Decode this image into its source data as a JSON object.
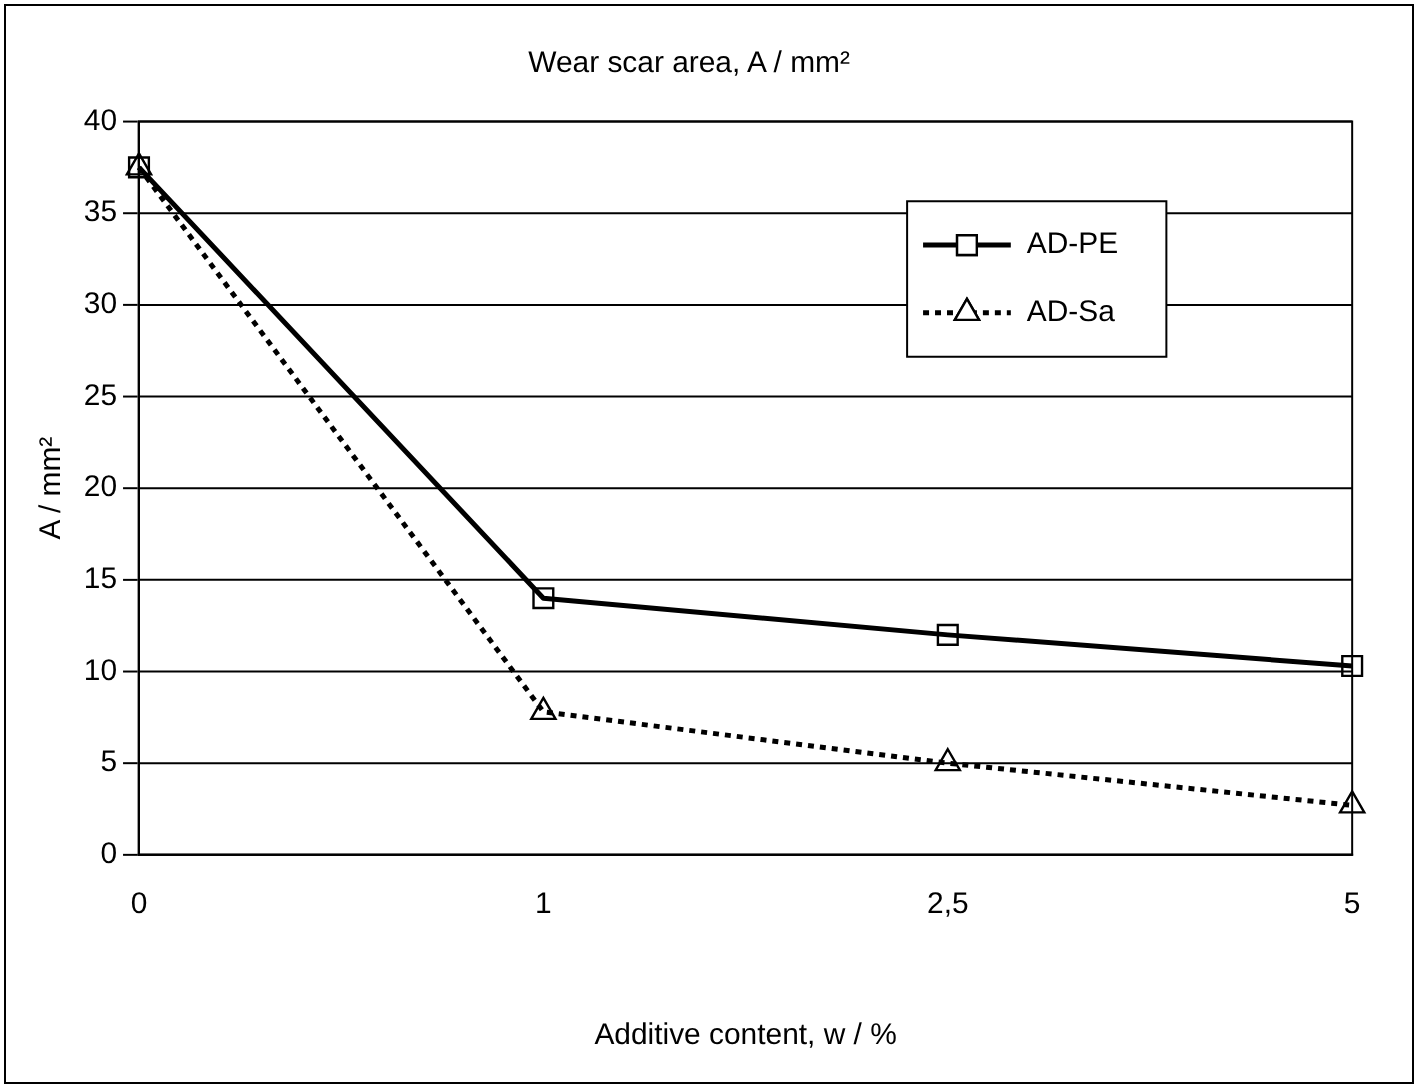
{
  "chart_data": {
    "type": "line",
    "title": "Wear scar area, A / mm²",
    "xlabel": "Additive content, w / %",
    "ylabel": "A / mm²",
    "categories": [
      "0",
      "1",
      "2,5",
      "5"
    ],
    "series": [
      {
        "name": "AD-PE",
        "color": "#000000",
        "values": [
          37.5,
          14,
          12,
          10.3
        ],
        "marker": "square",
        "line_style": "solid"
      },
      {
        "name": "AD-Sa",
        "color": "#000000",
        "values": [
          37.5,
          7.8,
          5,
          2.7
        ],
        "marker": "triangle",
        "line_style": "dotted"
      }
    ],
    "ylim": [
      0,
      40
    ],
    "yticks": [
      0,
      5,
      10,
      15,
      20,
      25,
      30,
      35,
      40
    ],
    "grid": "y",
    "legend": "top right"
  }
}
